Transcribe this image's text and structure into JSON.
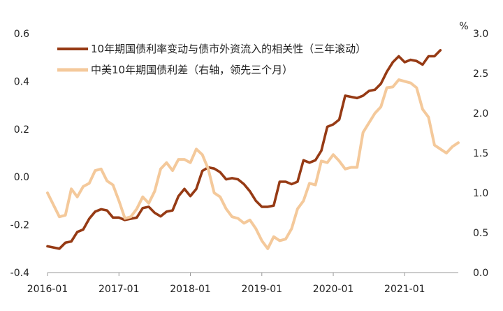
{
  "chart_data": {
    "type": "line",
    "right_axis_unit": "%",
    "left_axis": {
      "min": -0.4,
      "max": 0.6,
      "ticks": [
        "-0.4",
        "-0.2",
        "0.0",
        "0.2",
        "0.4",
        "0.6"
      ]
    },
    "right_axis": {
      "min": 0.0,
      "max": 3.0,
      "ticks": [
        "0.0",
        "0.5",
        "1.0",
        "1.5",
        "2.0",
        "2.5",
        "3.0"
      ]
    },
    "x_axis": {
      "start": "2016-01",
      "end": "2021-10",
      "ticks": [
        "2016-01",
        "2017-01",
        "2018-01",
        "2019-01",
        "2020-01",
        "2021-01"
      ]
    },
    "legend": {
      "placement": "top-left"
    },
    "series": [
      {
        "name": "10年期国债利率变动与债市外资流入的相关性（三年滚动）",
        "axis": "left",
        "color": "#963a14",
        "points": [
          [
            "2016-01",
            -0.29
          ],
          [
            "2016-02",
            -0.295
          ],
          [
            "2016-03",
            -0.3
          ],
          [
            "2016-04",
            -0.275
          ],
          [
            "2016-05",
            -0.27
          ],
          [
            "2016-06",
            -0.23
          ],
          [
            "2016-07",
            -0.22
          ],
          [
            "2016-08",
            -0.175
          ],
          [
            "2016-09",
            -0.145
          ],
          [
            "2016-10",
            -0.135
          ],
          [
            "2016-11",
            -0.14
          ],
          [
            "2016-12",
            -0.17
          ],
          [
            "2017-01",
            -0.17
          ],
          [
            "2017-02",
            -0.18
          ],
          [
            "2017-03",
            -0.175
          ],
          [
            "2017-04",
            -0.17
          ],
          [
            "2017-05",
            -0.13
          ],
          [
            "2017-06",
            -0.125
          ],
          [
            "2017-07",
            -0.15
          ],
          [
            "2017-08",
            -0.165
          ],
          [
            "2017-09",
            -0.145
          ],
          [
            "2017-10",
            -0.14
          ],
          [
            "2017-11",
            -0.08
          ],
          [
            "2017-12",
            -0.05
          ],
          [
            "2018-01",
            -0.08
          ],
          [
            "2018-02",
            -0.05
          ],
          [
            "2018-03",
            0.025
          ],
          [
            "2018-04",
            0.04
          ],
          [
            "2018-05",
            0.035
          ],
          [
            "2018-06",
            0.02
          ],
          [
            "2018-07",
            -0.01
          ],
          [
            "2018-08",
            -0.005
          ],
          [
            "2018-09",
            -0.01
          ],
          [
            "2018-10",
            -0.03
          ],
          [
            "2018-11",
            -0.06
          ],
          [
            "2018-12",
            -0.1
          ],
          [
            "2019-01",
            -0.125
          ],
          [
            "2019-02",
            -0.125
          ],
          [
            "2019-03",
            -0.12
          ],
          [
            "2019-04",
            -0.02
          ],
          [
            "2019-05",
            -0.02
          ],
          [
            "2019-06",
            -0.03
          ],
          [
            "2019-07",
            -0.02
          ],
          [
            "2019-08",
            0.07
          ],
          [
            "2019-09",
            0.06
          ],
          [
            "2019-10",
            0.07
          ],
          [
            "2019-11",
            0.11
          ],
          [
            "2019-12",
            0.21
          ],
          [
            "2020-01",
            0.22
          ],
          [
            "2020-02",
            0.24
          ],
          [
            "2020-03",
            0.34
          ],
          [
            "2020-04",
            0.335
          ],
          [
            "2020-05",
            0.33
          ],
          [
            "2020-06",
            0.34
          ],
          [
            "2020-07",
            0.36
          ],
          [
            "2020-08",
            0.365
          ],
          [
            "2020-09",
            0.39
          ],
          [
            "2020-10",
            0.44
          ],
          [
            "2020-11",
            0.48
          ],
          [
            "2020-12",
            0.505
          ],
          [
            "2021-01",
            0.48
          ],
          [
            "2021-02",
            0.49
          ],
          [
            "2021-03",
            0.485
          ],
          [
            "2021-04",
            0.47
          ],
          [
            "2021-05",
            0.505
          ],
          [
            "2021-06",
            0.505
          ],
          [
            "2021-07",
            0.53
          ]
        ]
      },
      {
        "name": "中美10年期国债利差（右轴，领先三个月）",
        "axis": "right",
        "color": "#f4c99b",
        "points": [
          [
            "2016-01",
            1.0
          ],
          [
            "2016-02",
            0.85
          ],
          [
            "2016-03",
            0.7
          ],
          [
            "2016-04",
            0.72
          ],
          [
            "2016-05",
            1.05
          ],
          [
            "2016-06",
            0.95
          ],
          [
            "2016-07",
            1.08
          ],
          [
            "2016-08",
            1.12
          ],
          [
            "2016-09",
            1.28
          ],
          [
            "2016-10",
            1.3
          ],
          [
            "2016-11",
            1.15
          ],
          [
            "2016-12",
            1.1
          ],
          [
            "2017-01",
            0.9
          ],
          [
            "2017-02",
            0.68
          ],
          [
            "2017-03",
            0.7
          ],
          [
            "2017-04",
            0.8
          ],
          [
            "2017-05",
            0.95
          ],
          [
            "2017-06",
            0.87
          ],
          [
            "2017-07",
            1.02
          ],
          [
            "2017-08",
            1.3
          ],
          [
            "2017-09",
            1.38
          ],
          [
            "2017-10",
            1.28
          ],
          [
            "2017-11",
            1.42
          ],
          [
            "2017-12",
            1.42
          ],
          [
            "2018-01",
            1.38
          ],
          [
            "2018-02",
            1.55
          ],
          [
            "2018-03",
            1.48
          ],
          [
            "2018-04",
            1.3
          ],
          [
            "2018-05",
            1.0
          ],
          [
            "2018-06",
            0.95
          ],
          [
            "2018-07",
            0.8
          ],
          [
            "2018-08",
            0.7
          ],
          [
            "2018-09",
            0.68
          ],
          [
            "2018-10",
            0.62
          ],
          [
            "2018-11",
            0.66
          ],
          [
            "2018-12",
            0.55
          ],
          [
            "2019-01",
            0.4
          ],
          [
            "2019-02",
            0.3
          ],
          [
            "2019-03",
            0.45
          ],
          [
            "2019-04",
            0.4
          ],
          [
            "2019-05",
            0.42
          ],
          [
            "2019-06",
            0.55
          ],
          [
            "2019-07",
            0.8
          ],
          [
            "2019-08",
            0.9
          ],
          [
            "2019-09",
            1.12
          ],
          [
            "2019-10",
            1.1
          ],
          [
            "2019-11",
            1.4
          ],
          [
            "2019-12",
            1.38
          ],
          [
            "2020-01",
            1.48
          ],
          [
            "2020-02",
            1.4
          ],
          [
            "2020-03",
            1.3
          ],
          [
            "2020-04",
            1.32
          ],
          [
            "2020-05",
            1.32
          ],
          [
            "2020-06",
            1.76
          ],
          [
            "2020-07",
            1.88
          ],
          [
            "2020-08",
            2.0
          ],
          [
            "2020-09",
            2.08
          ],
          [
            "2020-10",
            2.32
          ],
          [
            "2020-11",
            2.33
          ],
          [
            "2020-12",
            2.42
          ],
          [
            "2021-01",
            2.4
          ],
          [
            "2021-02",
            2.38
          ],
          [
            "2021-03",
            2.32
          ],
          [
            "2021-04",
            2.05
          ],
          [
            "2021-05",
            1.95
          ],
          [
            "2021-06",
            1.6
          ],
          [
            "2021-07",
            1.55
          ],
          [
            "2021-08",
            1.5
          ],
          [
            "2021-09",
            1.58
          ],
          [
            "2021-10",
            1.63
          ]
        ]
      }
    ]
  }
}
